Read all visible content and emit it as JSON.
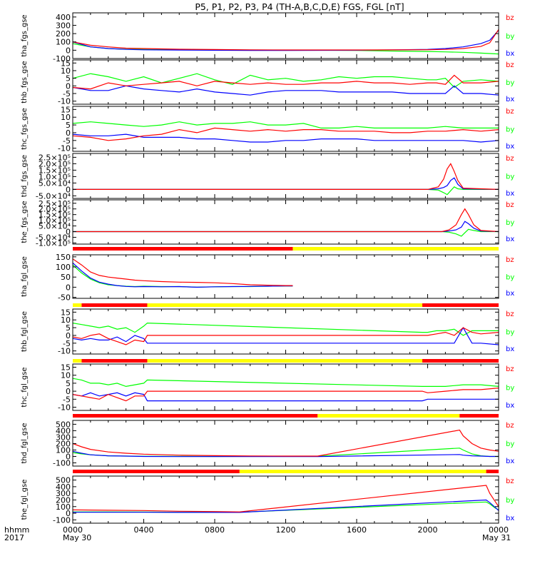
{
  "title": "P5, P1, P2, P3, P4 (TH-A,B,C,D,E) FGS, FGL [nT]",
  "footer": {
    "label_top": "hhmm",
    "label_bottom": "2017",
    "x_ticks": [
      "0000",
      "0400",
      "0800",
      "1200",
      "1600",
      "2000",
      "0000"
    ],
    "date_left": "May 30",
    "date_right": "May 31"
  },
  "colors": {
    "bz": "#ff0000",
    "by": "#00ff00",
    "bx": "#0000ff"
  },
  "chart_data": [
    {
      "type": "line",
      "label": "tha_fgs_gse",
      "legend": [
        "bz",
        "by",
        "bx"
      ],
      "ylim": [
        -100,
        450
      ],
      "yticks": [
        "400",
        "300",
        "200",
        "100",
        "0",
        "-100"
      ],
      "ytick_values": [
        400,
        300,
        200,
        100,
        0,
        -100
      ],
      "x_hours": [
        0,
        1,
        2,
        3,
        4,
        6,
        8,
        10,
        12,
        14,
        16,
        18,
        20,
        21,
        22,
        23,
        23.5,
        24
      ],
      "series": [
        {
          "name": "bz",
          "values": [
            100,
            60,
            40,
            25,
            20,
            12,
            8,
            5,
            3,
            3,
            3,
            4,
            6,
            10,
            20,
            45,
            90,
            250
          ]
        },
        {
          "name": "by",
          "values": [
            80,
            40,
            20,
            12,
            10,
            6,
            4,
            2,
            1,
            0,
            -2,
            -10,
            -15,
            -20,
            -25,
            -35,
            -40,
            -45
          ]
        },
        {
          "name": "bx",
          "values": [
            100,
            40,
            20,
            10,
            5,
            2,
            0,
            -2,
            -2,
            -1,
            0,
            5,
            10,
            20,
            40,
            80,
            120,
            240
          ]
        }
      ]
    },
    {
      "type": "line",
      "label": "thb_fgs_gse",
      "legend": [
        "bz",
        "by",
        "bx"
      ],
      "ylim": [
        -12,
        17
      ],
      "yticks": [
        "15",
        "10",
        "5",
        "0",
        "-5",
        "-10"
      ],
      "ytick_values": [
        15,
        10,
        5,
        0,
        -5,
        -10
      ],
      "x_hours": [
        0,
        1,
        2,
        3,
        4,
        5,
        6,
        7,
        8,
        9,
        10,
        11,
        12,
        13,
        14,
        15,
        16,
        17,
        18,
        19,
        20,
        20.5,
        21,
        21.5,
        22,
        23,
        24
      ],
      "series": [
        {
          "name": "bz",
          "values": [
            -1,
            -2,
            2,
            0,
            1,
            2,
            3,
            0,
            3,
            2,
            1,
            2,
            1,
            1,
            2,
            2,
            3,
            2,
            2,
            1,
            2,
            2,
            1,
            7,
            2,
            2,
            3
          ]
        },
        {
          "name": "by",
          "values": [
            5,
            8,
            6,
            3,
            6,
            2,
            5,
            8,
            4,
            1,
            7,
            4,
            5,
            3,
            4,
            6,
            5,
            6,
            6,
            5,
            4,
            4,
            5,
            -1,
            3,
            4,
            3
          ]
        },
        {
          "name": "bx",
          "values": [
            -1,
            -3,
            -3,
            0,
            -2,
            -3,
            -4,
            -2,
            -4,
            -5,
            -6,
            -4,
            -3,
            -3,
            -3,
            -4,
            -4,
            -4,
            -4,
            -5,
            -5,
            -5,
            -5,
            0,
            -5,
            -5,
            -6
          ]
        }
      ]
    },
    {
      "type": "line",
      "label": "thc_fgs_gse",
      "legend": [
        "bz",
        "by",
        "bx"
      ],
      "ylim": [
        -12,
        17
      ],
      "yticks": [
        "15",
        "10",
        "5",
        "0",
        "-5",
        "-10"
      ],
      "ytick_values": [
        15,
        10,
        5,
        0,
        -5,
        -10
      ],
      "x_hours": [
        0,
        1,
        2,
        3,
        4,
        5,
        6,
        7,
        8,
        9,
        10,
        11,
        12,
        13,
        14,
        15,
        16,
        17,
        18,
        19,
        20,
        21,
        22,
        23,
        24
      ],
      "series": [
        {
          "name": "bz",
          "values": [
            -2,
            -3,
            -5,
            -4,
            -2,
            -1,
            2,
            0,
            3,
            2,
            1,
            2,
            1,
            2,
            2,
            1,
            1,
            1,
            0,
            0,
            1,
            1,
            2,
            1,
            2
          ]
        },
        {
          "name": "by",
          "values": [
            6,
            7,
            6,
            5,
            4,
            5,
            7,
            5,
            6,
            6,
            7,
            5,
            5,
            6,
            3,
            3,
            4,
            3,
            3,
            3,
            3,
            4,
            3,
            3,
            3
          ]
        },
        {
          "name": "bx",
          "values": [
            -1,
            -2,
            -2,
            -1,
            -3,
            -3,
            -3,
            -4,
            -4,
            -5,
            -6,
            -6,
            -5,
            -5,
            -4,
            -4,
            -4,
            -5,
            -5,
            -5,
            -5,
            -5,
            -5,
            -6,
            -5
          ]
        }
      ]
    },
    {
      "type": "line",
      "label": "thd_fgs_gse",
      "legend": [
        "bz",
        "by",
        "bx"
      ],
      "ylim": [
        -70000,
        280000
      ],
      "yticks": [
        "2.5×10⁵",
        "2.0×10⁵",
        "1.5×10⁵",
        "1.0×10⁵",
        "5.0×10⁴",
        "0",
        "-5.0×10⁴"
      ],
      "ytick_values": [
        250000,
        200000,
        150000,
        100000,
        50000,
        0,
        -50000
      ],
      "x_hours": [
        0,
        20,
        20.6,
        20.9,
        21.1,
        21.3,
        21.5,
        21.7,
        22,
        24
      ],
      "series": [
        {
          "name": "bz",
          "values": [
            0,
            0,
            20000,
            80000,
            160000,
            200000,
            140000,
            70000,
            10000,
            0
          ]
        },
        {
          "name": "by",
          "values": [
            0,
            0,
            -5000,
            -25000,
            -40000,
            -10000,
            20000,
            5000,
            0,
            0
          ]
        },
        {
          "name": "bx",
          "values": [
            0,
            0,
            5000,
            15000,
            30000,
            70000,
            90000,
            40000,
            5000,
            0
          ]
        }
      ]
    },
    {
      "type": "line",
      "label": "the_fgs_gse",
      "legend": [
        "bz",
        "by",
        "bx"
      ],
      "ylim": [
        -110000,
        280000
      ],
      "yticks": [
        "2.5×10⁵",
        "2.0×10⁵",
        "1.5×10⁵",
        "1.0×10⁵",
        "5.0×10⁴",
        "0",
        "-5.0×10⁴",
        "-1.0×10⁵"
      ],
      "ytick_values": [
        250000,
        200000,
        150000,
        100000,
        50000,
        0,
        -50000,
        -100000
      ],
      "x_hours": [
        0,
        20.8,
        21.2,
        21.6,
        21.9,
        22.1,
        22.3,
        22.6,
        23.0,
        24
      ],
      "series": [
        {
          "name": "bz",
          "values": [
            0,
            0,
            15000,
            60000,
            150000,
            200000,
            150000,
            60000,
            10000,
            0
          ]
        },
        {
          "name": "by",
          "values": [
            0,
            0,
            -5000,
            -20000,
            -40000,
            -10000,
            20000,
            10000,
            0,
            0
          ]
        },
        {
          "name": "bx",
          "values": [
            0,
            0,
            5000,
            15000,
            40000,
            90000,
            70000,
            30000,
            5000,
            0
          ]
        }
      ]
    },
    {
      "type": "line",
      "label": "tha_fgl_gse",
      "legend": [
        "bz",
        "by",
        "bx"
      ],
      "ylim": [
        -55,
        160
      ],
      "yticks": [
        "150",
        "100",
        "50",
        "0",
        "-50"
      ],
      "ytick_values": [
        150,
        100,
        50,
        0,
        -50
      ],
      "x_hours": [
        0,
        0.5,
        1,
        1.5,
        2,
        2.5,
        3,
        3.5,
        4,
        5,
        6,
        7,
        8,
        9,
        10,
        11,
        12,
        12.4
      ],
      "series": [
        {
          "name": "bz",
          "values": [
            140,
            110,
            75,
            58,
            50,
            45,
            40,
            35,
            32,
            28,
            25,
            24,
            22,
            18,
            12,
            10,
            8,
            8
          ]
        },
        {
          "name": "by",
          "values": [
            110,
            70,
            40,
            22,
            12,
            8,
            5,
            3,
            5,
            3,
            3,
            0,
            2,
            3,
            3,
            5,
            6,
            6
          ]
        },
        {
          "name": "bx",
          "values": [
            120,
            80,
            45,
            25,
            15,
            8,
            4,
            2,
            3,
            2,
            3,
            0,
            2,
            3,
            4,
            5,
            6,
            6
          ]
        }
      ],
      "status_bar": [
        {
          "from": 0,
          "to": 12.4,
          "color": "red"
        },
        {
          "from": 12.4,
          "to": 24,
          "color": "yellow"
        }
      ]
    },
    {
      "type": "line",
      "label": "thb_fgl_gse",
      "legend": [
        "bz",
        "by",
        "bx"
      ],
      "ylim": [
        -12,
        17
      ],
      "yticks": [
        "15",
        "10",
        "5",
        "0",
        "-5",
        "-10"
      ],
      "ytick_values": [
        15,
        10,
        5,
        0,
        -5,
        -10
      ],
      "x_hours": [
        0,
        0.5,
        1,
        1.5,
        2,
        2.5,
        3,
        3.5,
        4,
        4.2,
        19.7,
        20,
        20.5,
        21,
        21.5,
        22,
        22.5,
        23,
        24
      ],
      "series": [
        {
          "name": "bz",
          "values": [
            -1,
            -2,
            0,
            1,
            -2,
            -4,
            -6,
            -3,
            -4,
            0,
            0,
            0,
            1,
            2,
            0,
            5,
            2,
            1,
            2
          ]
        },
        {
          "name": "by",
          "values": [
            8,
            7,
            6,
            5,
            6,
            4,
            5,
            2,
            6,
            8,
            2,
            2,
            3,
            3,
            4,
            0,
            3,
            3,
            3
          ]
        },
        {
          "name": "bx",
          "values": [
            -2,
            -3,
            -2,
            -3,
            -3,
            -1,
            -4,
            0,
            -2,
            -5,
            -5,
            -5,
            -5,
            -5,
            -5,
            5,
            -5,
            -5,
            -6
          ]
        }
      ],
      "status_bar": [
        {
          "from": 0,
          "to": 0.5,
          "color": "yellow"
        },
        {
          "from": 0.5,
          "to": 4.2,
          "color": "red"
        },
        {
          "from": 4.2,
          "to": 19.7,
          "color": "yellow"
        },
        {
          "from": 19.7,
          "to": 24,
          "color": "red"
        }
      ]
    },
    {
      "type": "line",
      "label": "thc_fgl_gse",
      "legend": [
        "bz",
        "by",
        "bx"
      ],
      "ylim": [
        -12,
        17
      ],
      "yticks": [
        "15",
        "10",
        "5",
        "0",
        "-5",
        "-10"
      ],
      "ytick_values": [
        15,
        10,
        5,
        0,
        -5,
        -10
      ],
      "x_hours": [
        0,
        0.5,
        1,
        1.5,
        2,
        2.5,
        3,
        3.5,
        4,
        4.2,
        19.7,
        20,
        21,
        22,
        23,
        24
      ],
      "series": [
        {
          "name": "bz",
          "values": [
            -2,
            -3,
            -4,
            -5,
            -2,
            -4,
            -6,
            -3,
            -3,
            0,
            0,
            -1,
            0,
            1,
            1,
            2
          ]
        },
        {
          "name": "by",
          "values": [
            8,
            7,
            5,
            5,
            4,
            5,
            3,
            4,
            5,
            7,
            3,
            3,
            3,
            4,
            4,
            3
          ]
        },
        {
          "name": "bx",
          "values": [
            -2,
            -3,
            -1,
            -3,
            -2,
            -1,
            -3,
            -1,
            -2,
            -6,
            -6,
            -5,
            -5,
            -5,
            -5,
            -5
          ]
        }
      ],
      "status_bar": [
        {
          "from": 0,
          "to": 0.5,
          "color": "yellow"
        },
        {
          "from": 0.5,
          "to": 4.2,
          "color": "red"
        },
        {
          "from": 4.2,
          "to": 19.7,
          "color": "yellow"
        },
        {
          "from": 19.7,
          "to": 24,
          "color": "red"
        }
      ]
    },
    {
      "type": "line",
      "label": "thd_fgl_gse",
      "legend": [
        "bz",
        "by",
        "bx"
      ],
      "ylim": [
        -150,
        560
      ],
      "yticks": [
        "500",
        "400",
        "300",
        "200",
        "100",
        "0",
        "-100"
      ],
      "ytick_values": [
        500,
        400,
        300,
        200,
        100,
        0,
        -100
      ],
      "x_hours": [
        0,
        0.5,
        1,
        2,
        3,
        4,
        6,
        8,
        10,
        12,
        13.8,
        21.8,
        22,
        22.5,
        23,
        23.5,
        24
      ],
      "series": [
        {
          "name": "bz",
          "values": [
            200,
            150,
            110,
            70,
            50,
            35,
            20,
            12,
            8,
            5,
            5,
            410,
            320,
            200,
            130,
            100,
            80
          ]
        },
        {
          "name": "by",
          "values": [
            60,
            40,
            25,
            10,
            5,
            3,
            2,
            0,
            2,
            3,
            3,
            130,
            100,
            40,
            10,
            0,
            0
          ]
        },
        {
          "name": "bx",
          "values": [
            80,
            50,
            25,
            10,
            5,
            0,
            -2,
            -3,
            -3,
            -3,
            -3,
            30,
            20,
            10,
            5,
            0,
            0
          ]
        }
      ],
      "status_bar": [
        {
          "from": 0,
          "to": 13.8,
          "color": "red"
        },
        {
          "from": 13.8,
          "to": 21.8,
          "color": "yellow"
        },
        {
          "from": 21.8,
          "to": 24,
          "color": "red"
        }
      ]
    },
    {
      "type": "line",
      "label": "the_fgl_gse",
      "legend": [
        "bz",
        "by",
        "bx"
      ],
      "ylim": [
        -150,
        560
      ],
      "yticks": [
        "500",
        "400",
        "300",
        "200",
        "100",
        "0",
        "-100"
      ],
      "ytick_values": [
        500,
        400,
        300,
        200,
        100,
        0,
        -100
      ],
      "x_hours": [
        0,
        2,
        4,
        6,
        8,
        9.4,
        23.3,
        23.5,
        23.8,
        24
      ],
      "series": [
        {
          "name": "bz",
          "values": [
            50,
            45,
            40,
            30,
            25,
            20,
            420,
            300,
            180,
            100
          ]
        },
        {
          "name": "by",
          "values": [
            20,
            20,
            18,
            15,
            15,
            15,
            170,
            140,
            80,
            50
          ]
        },
        {
          "name": "bx",
          "values": [
            15,
            15,
            15,
            12,
            12,
            12,
            200,
            160,
            90,
            40
          ]
        }
      ],
      "status_bar": [
        {
          "from": 0,
          "to": 9.4,
          "color": "red"
        },
        {
          "from": 9.4,
          "to": 23.3,
          "color": "yellow"
        },
        {
          "from": 23.3,
          "to": 24,
          "color": "red"
        }
      ]
    }
  ]
}
